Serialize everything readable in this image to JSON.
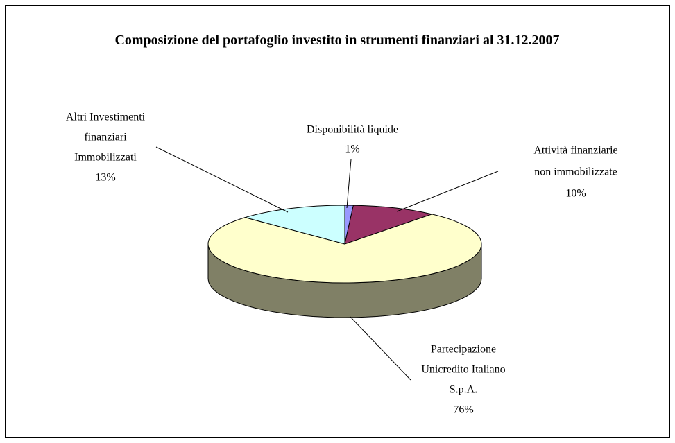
{
  "chart_data": {
    "type": "pie",
    "title": "Composizione del portafoglio investito in strumenti finanziari al 31.12.2007",
    "categories": [
      [
        "Disponibilità liquide"
      ],
      [
        "Attività finanziarie",
        "non immobilizzate"
      ],
      [
        "Partecipazione",
        "Unicredito Italiano",
        "S.p.A."
      ],
      [
        "Altri Investimenti",
        "finanziari",
        "Immobilizzati"
      ]
    ],
    "values": [
      1,
      10,
      76,
      13
    ],
    "value_labels": [
      "1%",
      "10%",
      "76%",
      "13%"
    ],
    "colors": [
      "#9999ff",
      "#993366",
      "#ffffcc",
      "#ccffff"
    ]
  }
}
